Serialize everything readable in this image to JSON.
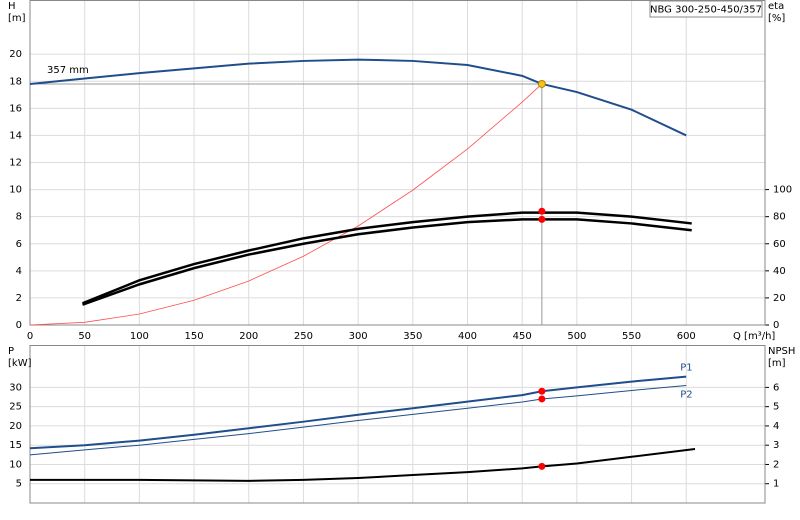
{
  "chart_data": [
    {
      "type": "line",
      "title": "NBG 300-250-450/357",
      "annotations": [
        "357 mm"
      ],
      "ylabel": "H",
      "yunit": "[m]",
      "y2label": "eta",
      "y2unit": "[%]",
      "xlabel": "Q [m³/h]",
      "xlim": [
        0,
        672
      ],
      "xticks": [
        0,
        50,
        100,
        150,
        200,
        250,
        300,
        350,
        400,
        450,
        500,
        550,
        600
      ],
      "ylim": [
        0,
        24
      ],
      "yticks": [
        0,
        2,
        4,
        6,
        8,
        10,
        12,
        14,
        16,
        18,
        20
      ],
      "y2lim": [
        0,
        240
      ],
      "y2ticks": [
        0,
        20,
        40,
        60,
        80,
        100
      ],
      "grid": true,
      "series": [
        {
          "color": "#1f4e8c",
          "width": 2,
          "x": [
            0,
            50,
            100,
            150,
            200,
            250,
            300,
            350,
            400,
            450,
            468,
            500,
            550,
            600
          ],
          "values": [
            17.8,
            18.2,
            18.6,
            18.95,
            19.3,
            19.5,
            19.6,
            19.5,
            19.2,
            18.4,
            17.8,
            17.2,
            15.9,
            14.0
          ]
        },
        {
          "color": "#ff4d4d",
          "width": 0.8,
          "x": [
            0,
            50,
            100,
            150,
            200,
            250,
            300,
            350,
            400,
            450,
            468
          ],
          "values": [
            0,
            0.2,
            0.81,
            1.83,
            3.25,
            5.08,
            7.31,
            9.96,
            13.0,
            16.46,
            17.8
          ]
        },
        {
          "color": "#000000",
          "width": 2.5,
          "axis": "y2",
          "x": [
            48,
            100,
            150,
            200,
            250,
            300,
            350,
            400,
            450,
            500,
            550,
            605
          ],
          "values": [
            16,
            33,
            45,
            55,
            64,
            71,
            76,
            80,
            83,
            83,
            80,
            75
          ]
        },
        {
          "color": "#000000",
          "width": 2.5,
          "axis": "y2",
          "x": [
            48,
            100,
            150,
            200,
            250,
            300,
            350,
            400,
            450,
            500,
            550,
            605
          ],
          "values": [
            15,
            30,
            42,
            52,
            60,
            67,
            72,
            76,
            78,
            78,
            75,
            70
          ]
        }
      ],
      "markers": [
        {
          "x": 468,
          "y": 17.8,
          "color": "#f5c518",
          "guides": true
        },
        {
          "x": 468,
          "y": 84,
          "color": "#ff0000",
          "axis": "y2"
        },
        {
          "x": 468,
          "y": 78,
          "color": "#ff0000",
          "axis": "y2"
        }
      ]
    },
    {
      "type": "line",
      "ylabel": "P",
      "yunit": "[kW]",
      "y2label": "NPSH",
      "y2unit": "[m]",
      "xlim": [
        0,
        672
      ],
      "ylim": [
        0,
        41
      ],
      "yticks": [
        5,
        10,
        15,
        20,
        25,
        30
      ],
      "y2lim": [
        0,
        8.2
      ],
      "y2ticks": [
        1,
        2,
        3,
        4,
        5,
        6
      ],
      "grid": true,
      "series": [
        {
          "name": "P1",
          "color": "#1f4e8c",
          "width": 2,
          "x": [
            0,
            50,
            100,
            150,
            200,
            250,
            300,
            350,
            400,
            450,
            468,
            500,
            550,
            600
          ],
          "values": [
            14.2,
            15,
            16.2,
            17.7,
            19.4,
            21.1,
            22.9,
            24.6,
            26.3,
            28.0,
            29,
            30,
            31.5,
            32.8
          ]
        },
        {
          "name": "P2",
          "color": "#1f4e8c",
          "width": 1,
          "x": [
            0,
            50,
            100,
            150,
            200,
            250,
            300,
            350,
            400,
            450,
            468,
            500,
            550,
            600
          ],
          "values": [
            12.5,
            13.8,
            15,
            16.5,
            18,
            19.7,
            21.4,
            23,
            24.6,
            26.2,
            27,
            27.8,
            29.2,
            30.5
          ]
        },
        {
          "color": "#000000",
          "width": 2,
          "axis": "y2",
          "x": [
            0,
            60,
            100,
            200,
            250,
            300,
            350,
            400,
            450,
            468,
            500,
            550,
            608
          ],
          "values": [
            1.2,
            1.2,
            1.2,
            1.15,
            1.2,
            1.3,
            1.45,
            1.6,
            1.8,
            1.9,
            2.05,
            2.4,
            2.8
          ]
        }
      ],
      "markers": [
        {
          "x": 468,
          "y": 29,
          "color": "#ff0000"
        },
        {
          "x": 468,
          "y": 27,
          "color": "#ff0000"
        },
        {
          "x": 468,
          "y": 1.9,
          "color": "#ff0000",
          "axis": "y2"
        }
      ]
    }
  ]
}
